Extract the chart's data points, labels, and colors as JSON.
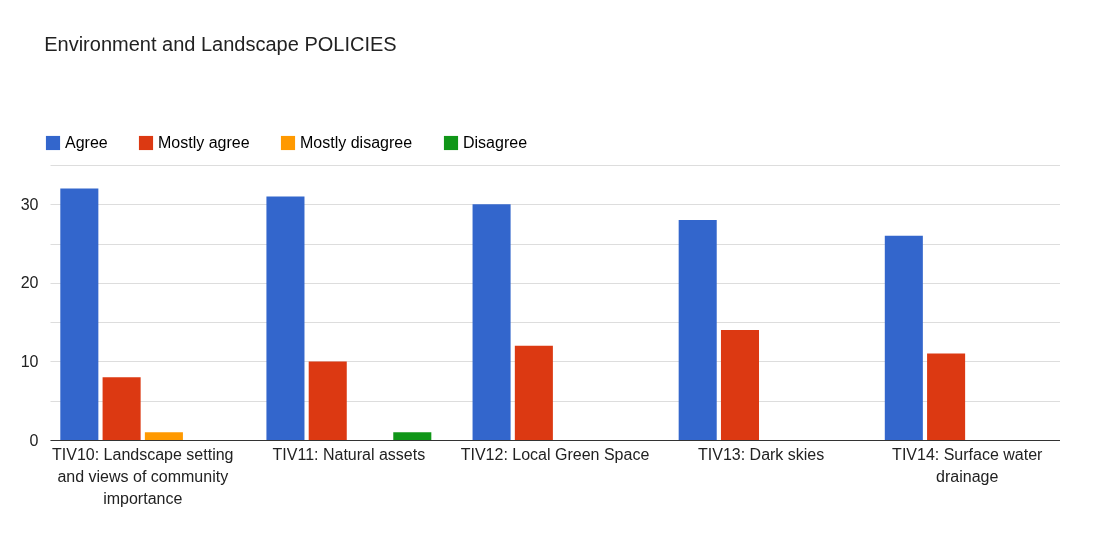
{
  "chart_data": {
    "type": "bar",
    "title": "Environment and Landscape POLICIES",
    "categories": [
      "TIV10: Landscape setting and views of community importance",
      "TIV11: Natural assets",
      "TIV12: Local Green Space",
      "TIV13: Dark skies",
      "TIV14: Surface water drainage"
    ],
    "series": [
      {
        "name": "Agree",
        "color": "#3366cc",
        "values": [
          32,
          31,
          30,
          28,
          26
        ]
      },
      {
        "name": "Mostly agree",
        "color": "#dc3912",
        "values": [
          8,
          10,
          12,
          14,
          11
        ]
      },
      {
        "name": "Mostly disagree",
        "color": "#ff9900",
        "values": [
          1,
          0,
          0,
          0,
          0
        ]
      },
      {
        "name": "Disagree",
        "color": "#109618",
        "values": [
          0,
          1,
          0,
          0,
          0
        ]
      }
    ],
    "ylim": [
      0,
      35
    ],
    "yticks": [
      0,
      {
        "value": 5,
        "label": null
      },
      10,
      {
        "value": 15,
        "label": null
      },
      20,
      {
        "value": 25,
        "label": null
      },
      30,
      {
        "value": 35,
        "label": null
      }
    ],
    "grid": true,
    "legend": "top left"
  }
}
